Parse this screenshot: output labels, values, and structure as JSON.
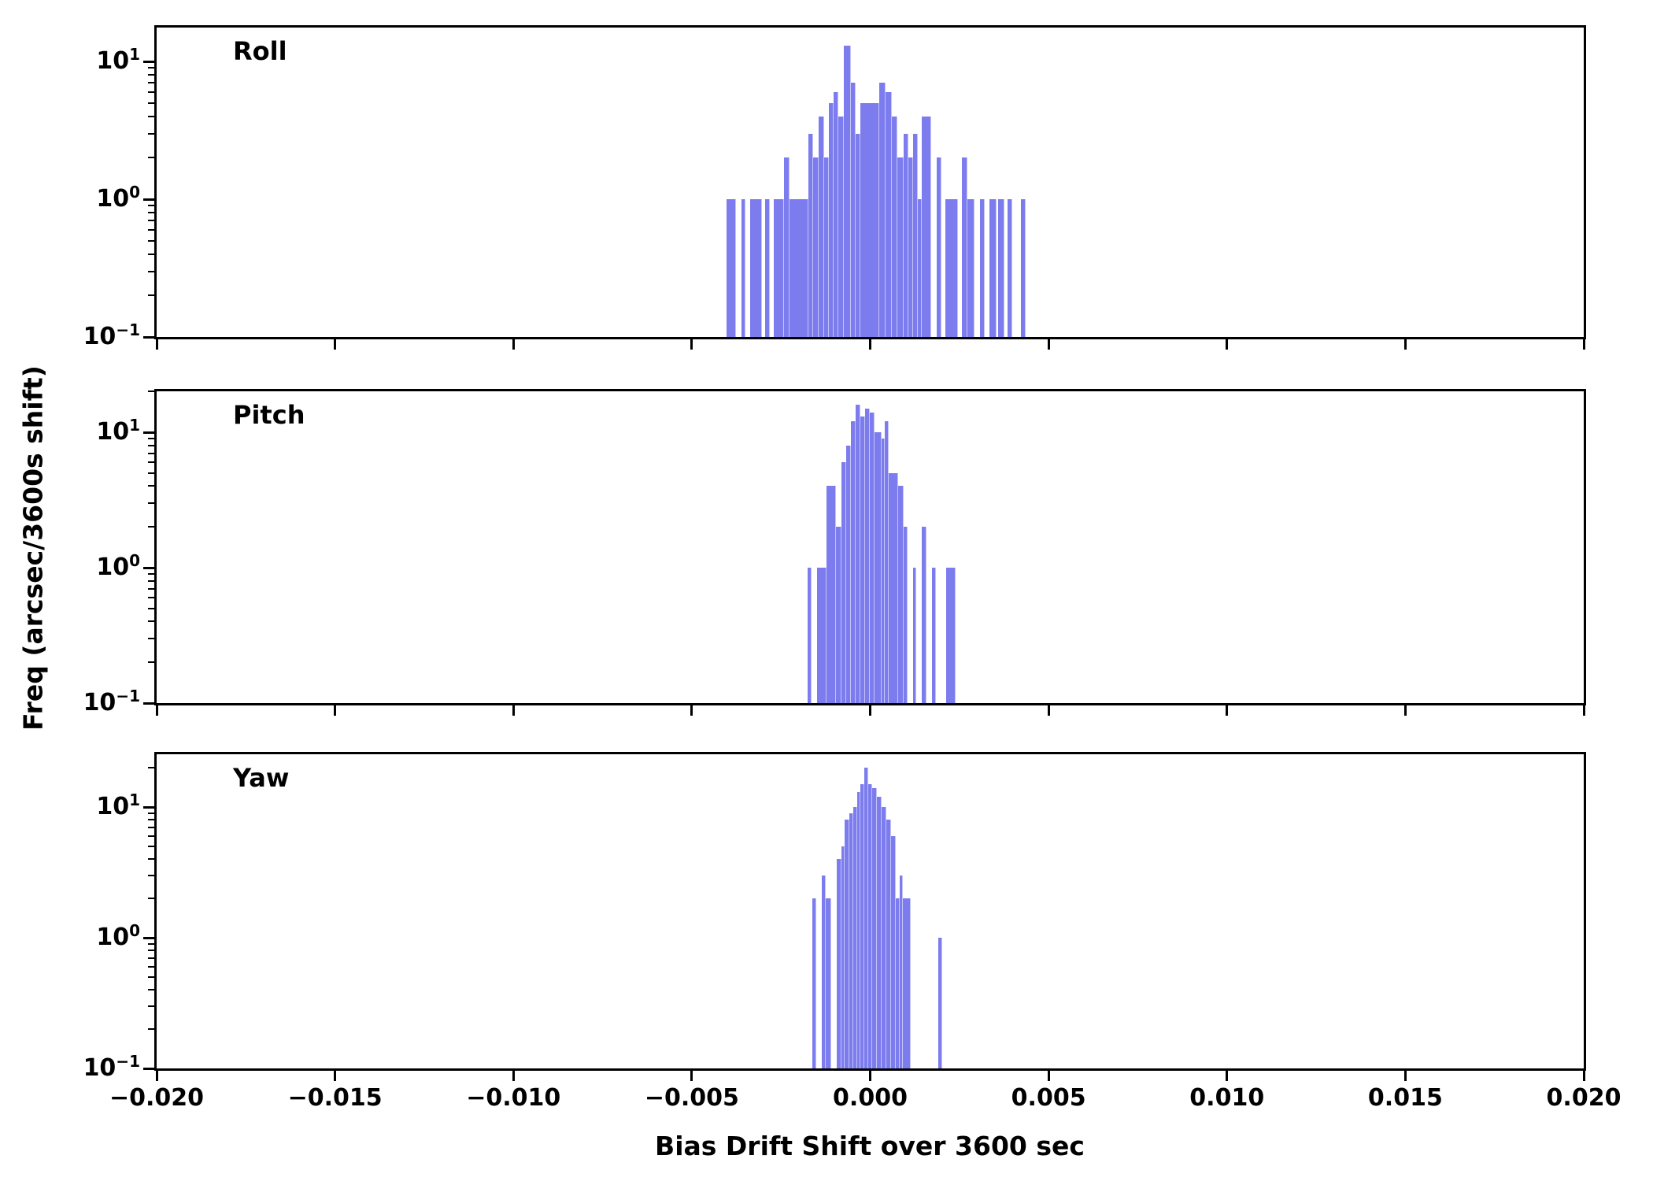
{
  "figure": {
    "bar_color": "#7c7cee",
    "axis_color": "#000000",
    "background_color": "#ffffff",
    "text_color": "#000000"
  },
  "labels": {
    "ylabel": "Freq (arcsec/3600s shift)",
    "xlabel": "Bias Drift Shift over 3600 sec"
  },
  "x_axis": {
    "ticks": [
      {
        "value": -0.02,
        "label": "−0.020"
      },
      {
        "value": -0.015,
        "label": "−0.015"
      },
      {
        "value": -0.01,
        "label": "−0.010"
      },
      {
        "value": -0.005,
        "label": "−0.005"
      },
      {
        "value": 0.0,
        "label": "0.000"
      },
      {
        "value": 0.005,
        "label": "0.005"
      },
      {
        "value": 0.01,
        "label": "0.010"
      },
      {
        "value": 0.015,
        "label": "0.015"
      },
      {
        "value": 0.02,
        "label": "0.020"
      }
    ]
  },
  "y_axis": {
    "major": [
      {
        "value": 10,
        "base": "10",
        "exp": "1"
      },
      {
        "value": 1,
        "base": "10",
        "exp": "0"
      },
      {
        "value": 0.1,
        "base": "10",
        "exp": "−1"
      }
    ],
    "minor_values": [
      0.2,
      0.3,
      0.4,
      0.5,
      0.6,
      0.7,
      0.8,
      0.9,
      2,
      3,
      4,
      5,
      6,
      7,
      8,
      9,
      20
    ]
  },
  "chart_data": {
    "type": "histogram",
    "xlabel": "Bias Drift Shift over 3600 sec",
    "ylabel": "Freq (arcsec/3600s shift)",
    "xscale": "linear",
    "yscale": "log",
    "xlim": [
      -0.02,
      0.02
    ],
    "grid": false,
    "legend": false,
    "panels": [
      {
        "label": "Roll",
        "ylim": [
          0.1,
          17.6
        ],
        "bars": [
          [
            -0.004026,
            -0.003761,
            1
          ],
          [
            -0.003614,
            -0.003503,
            1
          ],
          [
            -0.003371,
            -0.003027,
            1
          ],
          [
            -0.002952,
            -0.002806,
            1
          ],
          [
            -0.002709,
            -0.002416,
            1
          ],
          [
            -0.002416,
            -0.002255,
            2
          ],
          [
            -0.002255,
            -0.001738,
            1
          ],
          [
            -0.001738,
            -0.001593,
            3
          ],
          [
            -0.001593,
            -0.001445,
            2
          ],
          [
            -0.001445,
            -0.001297,
            4
          ],
          [
            -0.001297,
            -0.001152,
            2
          ],
          [
            -0.001152,
            -0.001026,
            5
          ],
          [
            -0.001026,
            -0.000894,
            6
          ],
          [
            -0.000894,
            -0.000732,
            4
          ],
          [
            -0.000732,
            -0.000547,
            13
          ],
          [
            -0.000547,
            -0.000415,
            7
          ],
          [
            -0.000415,
            -0.000269,
            3
          ],
          [
            -0.000269,
            0.000247,
            5
          ],
          [
            0.000247,
            0.00043,
            7
          ],
          [
            0.00043,
            0.000607,
            6
          ],
          [
            0.000607,
            0.000761,
            4
          ],
          [
            0.000761,
            0.000938,
            2
          ],
          [
            0.000938,
            0.00107,
            3
          ],
          [
            0.00107,
            0.001202,
            2
          ],
          [
            0.001202,
            0.001335,
            3
          ],
          [
            0.001335,
            0.001445,
            1
          ],
          [
            0.001445,
            0.00171,
            4
          ],
          [
            0.001864,
            0.001997,
            2
          ],
          [
            0.002107,
            0.00246,
            1
          ],
          [
            0.00257,
            0.002724,
            2
          ],
          [
            0.002724,
            0.002923,
            1
          ],
          [
            0.003077,
            0.00321,
            1
          ],
          [
            0.003342,
            0.003541,
            1
          ],
          [
            0.003585,
            0.003761,
            1
          ],
          [
            0.00385,
            0.003982,
            1
          ],
          [
            0.004225,
            0.004357,
            1
          ]
        ]
      },
      {
        "label": "Pitch",
        "ylim": [
          0.1,
          20.1
        ],
        "bars": [
          [
            -0.001754,
            -0.001643,
            1
          ],
          [
            -0.001483,
            -0.001224,
            1
          ],
          [
            -0.001224,
            -0.000966,
            4
          ],
          [
            -0.000966,
            -0.000805,
            2
          ],
          [
            -0.000805,
            -0.000673,
            6
          ],
          [
            -0.000673,
            -0.000541,
            8
          ],
          [
            -0.000541,
            -0.000408,
            12
          ],
          [
            -0.000408,
            -0.000276,
            16
          ],
          [
            -0.000276,
            -0.000143,
            13
          ],
          [
            -0.000143,
            -1.1e-05,
            15
          ],
          [
            -1.1e-05,
            0.000121,
            14
          ],
          [
            0.000121,
            0.00032,
            10
          ],
          [
            0.00032,
            0.000408,
            9
          ],
          [
            0.000408,
            0.000518,
            12
          ],
          [
            0.000518,
            0.000783,
            5
          ],
          [
            0.000783,
            0.000938,
            4
          ],
          [
            0.000938,
            0.001048,
            2
          ],
          [
            0.001202,
            0.00129,
            1
          ],
          [
            0.001445,
            0.001577,
            2
          ],
          [
            0.001732,
            0.001842,
            1
          ],
          [
            0.002129,
            0.002394,
            1
          ]
        ]
      },
      {
        "label": "Yaw",
        "ylim": [
          0.1,
          25.3
        ],
        "bars": [
          [
            -0.001615,
            -0.001518,
            2
          ],
          [
            -0.001357,
            -0.00124,
            3
          ],
          [
            -0.00124,
            -0.001092,
            2
          ],
          [
            -0.000944,
            -0.000799,
            4
          ],
          [
            -0.000799,
            -0.00071,
            5
          ],
          [
            -0.00071,
            -0.000585,
            8
          ],
          [
            -0.000585,
            -0.000474,
            9
          ],
          [
            -0.000474,
            -0.000364,
            10
          ],
          [
            -0.000364,
            -0.000269,
            13
          ],
          [
            -0.000269,
            -0.000172,
            15
          ],
          [
            -0.000172,
            -6.2e-05,
            20
          ],
          [
            -6.2e-05,
            6.2e-05,
            15
          ],
          [
            6.2e-05,
            0.000188,
            14
          ],
          [
            0.000188,
            0.00032,
            12
          ],
          [
            0.00032,
            0.000452,
            10
          ],
          [
            0.000452,
            0.000585,
            8
          ],
          [
            0.000585,
            0.000717,
            6
          ],
          [
            0.000717,
            0.000827,
            2
          ],
          [
            0.000827,
            0.000916,
            3
          ],
          [
            0.000916,
            0.001136,
            2
          ],
          [
            0.001908,
            0.002018,
            1
          ]
        ]
      }
    ]
  }
}
